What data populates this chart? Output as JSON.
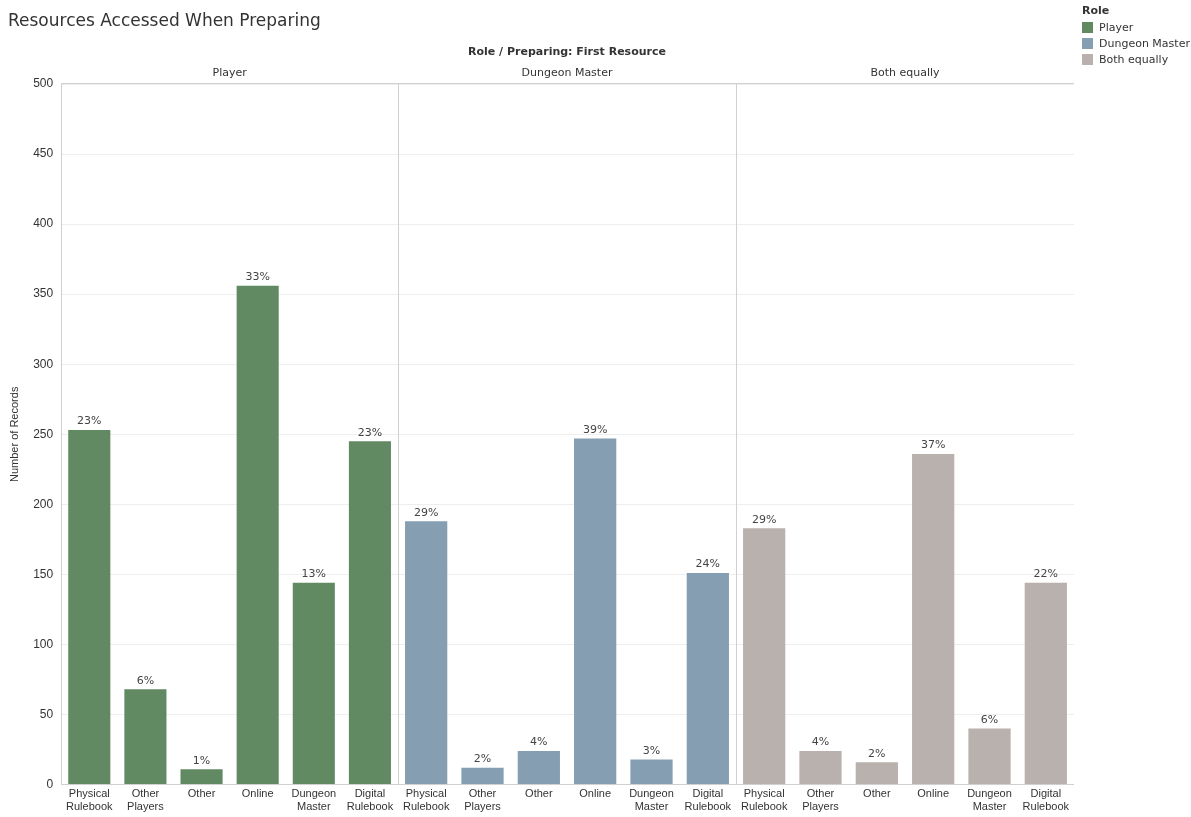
{
  "chart_data": [
    {
      "type": "bar",
      "title": "Resources Accessed When Preparing",
      "ylabel": "Number of Records",
      "grid": "y",
      "categories": [
        "Physical Rulebook",
        "Other Players",
        "Other",
        "Online",
        "Dungeon Master",
        "Digital Rulebook"
      ],
      "series": [
        {
          "name": "Player",
          "color": "#618a63",
          "values": [
            253,
            68,
            11,
            356,
            144,
            245
          ]
        }
      ],
      "annotations": [
        "Player",
        {
          "text": "23%",
          "x": "Physical Rulebook",
          "y": 253
        },
        {
          "text": "6%",
          "x": "Other Players",
          "y": 68
        },
        {
          "text": "1%",
          "x": "Other",
          "y": 11
        },
        {
          "text": "33%",
          "x": "Online",
          "y": 356
        },
        {
          "text": "13%",
          "x": "Dungeon Master",
          "y": 144
        },
        {
          "text": "23%",
          "x": "Digital Rulebook",
          "y": 245
        }
      ],
      "ylim": [
        0,
        500
      ],
      "yticks": [
        0,
        50,
        100,
        150,
        200,
        250,
        300,
        350,
        400,
        450,
        500
      ]
    },
    {
      "type": "bar",
      "subtitle": "Role / Preparing: First Resource",
      "grid": "y",
      "tick_labels": "x",
      "categories": [
        "Physical Rulebook",
        "Other Players",
        "Other",
        "Online",
        "Dungeon Master",
        "Digital Rulebook"
      ],
      "series": [
        {
          "name": "Dungeon Master",
          "color": "#859eb2",
          "values": [
            188,
            12,
            24,
            247,
            18,
            151
          ]
        }
      ],
      "annotations": [
        "Dungeon Master",
        {
          "text": "29%",
          "x": "Physical Rulebook",
          "y": 188
        },
        {
          "text": "2%",
          "x": "Other Players",
          "y": 12
        },
        {
          "text": "4%",
          "x": "Other",
          "y": 24
        },
        {
          "text": "39%",
          "x": "Online",
          "y": 247
        },
        {
          "text": "3%",
          "x": "Dungeon Master",
          "y": 18
        },
        {
          "text": "24%",
          "x": "Digital Rulebook",
          "y": 151
        }
      ],
      "ylim": [
        0,
        500
      ],
      "yticks": [
        0,
        50,
        100,
        150,
        200,
        250,
        300,
        350,
        400,
        450,
        500
      ]
    },
    {
      "type": "bar",
      "grid": "y",
      "tick_labels": "x",
      "legend": "top right",
      "legend_title": "Role",
      "categories": [
        "Physical Rulebook",
        "Other Players",
        "Other",
        "Online",
        "Dungeon Master",
        "Digital Rulebook"
      ],
      "series": [
        {
          "name": "Both equally",
          "color": "#b9b1ad",
          "values": [
            183,
            24,
            16,
            236,
            40,
            144
          ]
        }
      ],
      "annotations": [
        "Both equally",
        {
          "text": "29%",
          "x": "Physical Rulebook",
          "y": 183
        },
        {
          "text": "4%",
          "x": "Other Players",
          "y": 24
        },
        {
          "text": "2%",
          "x": "Other",
          "y": 16
        },
        {
          "text": "37%",
          "x": "Online",
          "y": 236
        },
        {
          "text": "6%",
          "x": "Dungeon Master",
          "y": 40
        },
        {
          "text": "22%",
          "x": "Digital Rulebook",
          "y": 144
        }
      ],
      "ylim": [
        0,
        500
      ],
      "yticks": [
        0,
        50,
        100,
        150,
        200,
        250,
        300,
        350,
        400,
        450,
        500
      ]
    }
  ]
}
